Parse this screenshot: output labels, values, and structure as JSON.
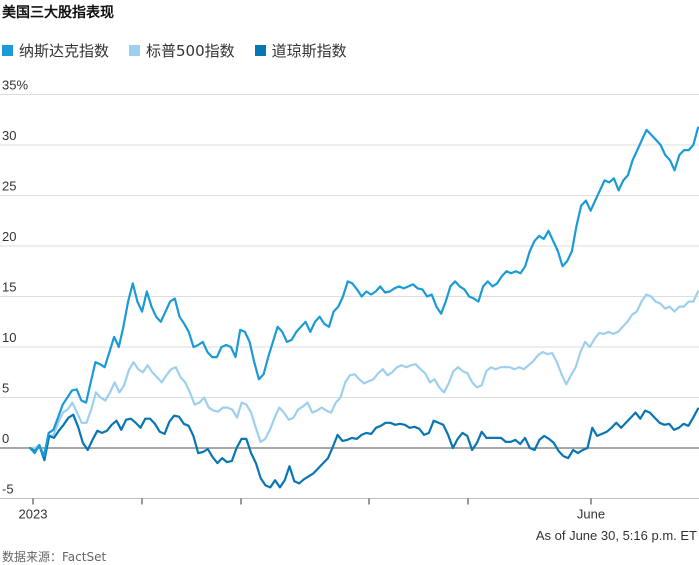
{
  "title": "美国三大股指表现",
  "note": "As of June 30, 5:16 p.m. ET",
  "source": "数据来源：FactSet",
  "chart_data": {
    "type": "line",
    "title": "美国三大股指表现",
    "ylim": [
      -5,
      35
    ],
    "y_ticks": [
      "35%",
      "30",
      "25",
      "20",
      "15",
      "10",
      "5",
      "0",
      "-5"
    ],
    "y_tick_values": [
      35,
      30,
      25,
      20,
      15,
      10,
      5,
      0,
      -5
    ],
    "x_tick_labels": [
      "2023",
      "June"
    ],
    "grid": true,
    "legend_placement": "top-left",
    "series": [
      {
        "name": "纳斯达克指数",
        "color": "#1a9ad6",
        "values": [
          0,
          -0.5,
          0.3,
          -0.8,
          1.5,
          1.8,
          3,
          4.3,
          5,
          5.7,
          5.8,
          4.7,
          4.5,
          6.5,
          8.5,
          8.3,
          8,
          9.5,
          11,
          10,
          12,
          14.5,
          16.3,
          14.5,
          13.5,
          15.5,
          14,
          13,
          12.5,
          13.5,
          14.5,
          14.8,
          13,
          12.3,
          11.5,
          10,
          10.2,
          10.5,
          9.5,
          9,
          9,
          10,
          10.2,
          10,
          9,
          11.7,
          11.5,
          10.5,
          8.5,
          6.8,
          7.3,
          9,
          10.5,
          12,
          11.5,
          10.5,
          10.7,
          11.5,
          12,
          12.5,
          11.5,
          12.5,
          13,
          12.3,
          12,
          13.5,
          14,
          15,
          16.5,
          16.3,
          15.7,
          15,
          15.5,
          15.2,
          15.5,
          16,
          15.4,
          15.5,
          15.8,
          16,
          15.8,
          16,
          16.2,
          15.8,
          15.7,
          15,
          15.2,
          14,
          13.3,
          14.5,
          16,
          16.5,
          16,
          15.7,
          15,
          14.8,
          14.5,
          16,
          16.5,
          16,
          16.3,
          17,
          17.5,
          17.3,
          17.5,
          17.3,
          18,
          19.5,
          20.5,
          21,
          20.7,
          21.5,
          20.5,
          19.5,
          18,
          18.5,
          19.5,
          22,
          24,
          24.5,
          23.5,
          24.5,
          25.5,
          26.5,
          26.3,
          26.7,
          25.5,
          26.5,
          27,
          28.5,
          29.5,
          30.5,
          31.5,
          31,
          30.5,
          30,
          29,
          28.5,
          27.5,
          29,
          29.5,
          29.5,
          30,
          31.7
        ]
      },
      {
        "name": "标普500指数",
        "color": "#9dcfee",
        "values": [
          0,
          0,
          0.3,
          -1,
          1.2,
          1.3,
          2.5,
          3.5,
          3.8,
          4.5,
          3.5,
          2.5,
          2.5,
          3.8,
          5.5,
          5,
          4.7,
          5.5,
          6.5,
          5.5,
          6.2,
          7.7,
          8.5,
          7.8,
          7.5,
          8.2,
          7.5,
          7,
          6.5,
          7.2,
          7.8,
          8,
          7,
          6.5,
          5.5,
          4.3,
          4.5,
          5,
          4,
          3.7,
          3.6,
          4,
          4,
          3.8,
          3,
          4.5,
          4.3,
          3.5,
          2,
          0.6,
          0.9,
          1.8,
          3,
          4,
          3.5,
          2.8,
          3,
          3.8,
          4.1,
          4.5,
          3.5,
          3.7,
          4,
          3.7,
          3.5,
          4.5,
          5,
          6.5,
          7.2,
          7.3,
          6.8,
          6.4,
          6.6,
          6.8,
          7.4,
          7.8,
          7.2,
          7.5,
          8,
          8.2,
          8,
          8.2,
          8.3,
          7.8,
          7.4,
          6.5,
          6.8,
          6,
          5.5,
          6.4,
          7.6,
          8,
          7.6,
          7.4,
          6.5,
          6,
          6.2,
          7.6,
          8,
          7.8,
          8,
          8,
          8,
          7.8,
          8,
          7.8,
          8.2,
          8.6,
          9.2,
          9.5,
          9.3,
          9.4,
          8.5,
          7.3,
          6.3,
          7.2,
          8,
          9.5,
          10.5,
          10,
          10.8,
          11.4,
          11.3,
          11.5,
          11.3,
          11.5,
          12,
          12.5,
          13.2,
          13.5,
          14.5,
          15.2,
          15,
          14.5,
          14.3,
          13.8,
          14,
          13.5,
          14,
          14,
          14.5,
          14.5,
          15.5
        ]
      },
      {
        "name": "道琼斯指数",
        "color": "#0776b3",
        "values": [
          0,
          -0.3,
          0.2,
          -1.2,
          1.2,
          1,
          1.7,
          2.3,
          3,
          3.3,
          2.1,
          0.5,
          -0.2,
          0.8,
          1.7,
          1.5,
          1.7,
          2.3,
          2.7,
          1.8,
          2.8,
          2.9,
          2.5,
          2,
          2.9,
          2.9,
          2.4,
          1.6,
          1.4,
          2.6,
          3.2,
          3.1,
          2.4,
          2.2,
          1.2,
          -0.5,
          -0.4,
          -0.1,
          -0.9,
          -1.5,
          -1,
          -1.4,
          -1.3,
          0,
          0.9,
          0.9,
          -0.5,
          -1.5,
          -3,
          -3.7,
          -3.9,
          -3.2,
          -3.9,
          -3.2,
          -1.8,
          -3.3,
          -3.5,
          -3.1,
          -2.8,
          -2.5,
          -2,
          -1.5,
          -1,
          0.1,
          1.3,
          0.7,
          0.8,
          1,
          0.9,
          1.3,
          1.5,
          1.4,
          2,
          2.2,
          2.5,
          2.5,
          2.3,
          2.4,
          2.3,
          2,
          2.1,
          1.9,
          1.3,
          1.5,
          2.7,
          2.5,
          2.3,
          1.3,
          0,
          0.9,
          1.5,
          1.2,
          -0.2,
          0.5,
          1.6,
          1,
          1,
          1,
          1,
          0.6,
          0.6,
          0.8,
          0.4,
          1,
          0,
          -0.2,
          0.8,
          1.2,
          0.9,
          0.5,
          -0.3,
          -0.8,
          -1,
          -0.2,
          -0.5,
          -0.2,
          0,
          2,
          1.2,
          1.4,
          1.6,
          2,
          2.5,
          2,
          2.5,
          3,
          3.5,
          2.9,
          3.7,
          3.5,
          3,
          2.5,
          2.3,
          2.4,
          1.8,
          2,
          2.4,
          2.2,
          3,
          3.9
        ]
      }
    ]
  }
}
